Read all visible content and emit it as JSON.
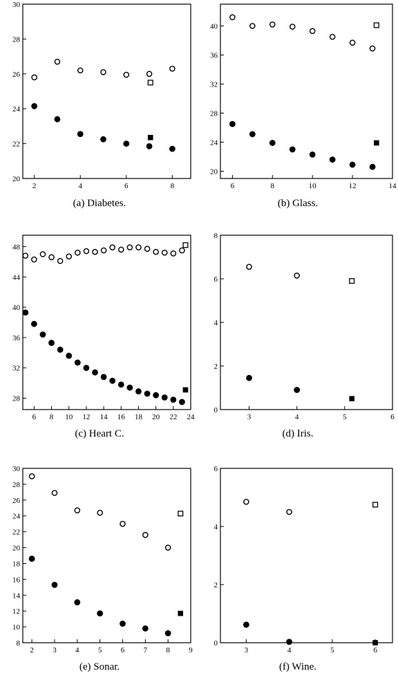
{
  "chart_data": [
    {
      "type": "scatter",
      "caption": "(a) Diabetes.",
      "xlim": [
        1.5,
        8.8
      ],
      "ylim": [
        20,
        30
      ],
      "xticks": [
        2,
        4,
        6,
        8
      ],
      "yticks": [
        20,
        22,
        24,
        26,
        28,
        30
      ],
      "series": [
        {
          "marker": "open-circle",
          "points": [
            [
              2,
              25.8
            ],
            [
              3,
              26.7
            ],
            [
              4,
              26.2
            ],
            [
              5,
              26.1
            ],
            [
              6,
              25.95
            ],
            [
              7,
              26.0
            ],
            [
              8,
              26.3
            ]
          ]
        },
        {
          "marker": "filled-circle",
          "points": [
            [
              2,
              24.15
            ],
            [
              3,
              23.4
            ],
            [
              4,
              22.55
            ],
            [
              5,
              22.25
            ],
            [
              6,
              22.0
            ],
            [
              7,
              21.85
            ],
            [
              8,
              21.7
            ]
          ]
        },
        {
          "marker": "open-square",
          "points": [
            [
              7.05,
              25.5
            ]
          ]
        },
        {
          "marker": "filled-square",
          "points": [
            [
              7.05,
              22.35
            ]
          ]
        }
      ]
    },
    {
      "type": "scatter",
      "caption": "(b) Glass.",
      "xlim": [
        5.4,
        14
      ],
      "ylim": [
        19,
        43
      ],
      "xticks": [
        6,
        8,
        10,
        12,
        14
      ],
      "yticks": [
        20,
        24,
        28,
        32,
        36,
        40
      ],
      "series": [
        {
          "marker": "open-circle",
          "points": [
            [
              6,
              41.2
            ],
            [
              7,
              40.0
            ],
            [
              8,
              40.2
            ],
            [
              9,
              39.9
            ],
            [
              10,
              39.3
            ],
            [
              11,
              38.5
            ],
            [
              12,
              37.7
            ],
            [
              13,
              36.9
            ]
          ]
        },
        {
          "marker": "filled-circle",
          "points": [
            [
              6,
              26.5
            ],
            [
              7,
              25.1
            ],
            [
              8,
              23.9
            ],
            [
              9,
              23.0
            ],
            [
              10,
              22.3
            ],
            [
              11,
              21.6
            ],
            [
              12,
              20.9
            ],
            [
              13,
              20.6
            ]
          ]
        },
        {
          "marker": "open-square",
          "points": [
            [
              13.2,
              40.1
            ]
          ]
        },
        {
          "marker": "filled-square",
          "points": [
            [
              13.2,
              23.9
            ]
          ]
        }
      ]
    },
    {
      "type": "scatter",
      "caption": "(c) Heart C.",
      "xlim": [
        4.7,
        24
      ],
      "ylim": [
        26.5,
        49.5
      ],
      "xticks": [
        6,
        8,
        10,
        12,
        14,
        16,
        18,
        20,
        22,
        24
      ],
      "yticks": [
        28,
        32,
        36,
        40,
        44,
        48
      ],
      "series": [
        {
          "marker": "open-circle",
          "points": [
            [
              5,
              46.8
            ],
            [
              6,
              46.3
            ],
            [
              7,
              47.0
            ],
            [
              8,
              46.6
            ],
            [
              9,
              46.1
            ],
            [
              10,
              46.7
            ],
            [
              11,
              47.2
            ],
            [
              12,
              47.4
            ],
            [
              13,
              47.3
            ],
            [
              14,
              47.5
            ],
            [
              15,
              47.9
            ],
            [
              16,
              47.6
            ],
            [
              17,
              47.9
            ],
            [
              18,
              47.9
            ],
            [
              19,
              47.7
            ],
            [
              20,
              47.3
            ],
            [
              21,
              47.2
            ],
            [
              22,
              47.1
            ],
            [
              23,
              47.5
            ]
          ]
        },
        {
          "marker": "filled-circle",
          "points": [
            [
              5,
              39.3
            ],
            [
              6,
              37.8
            ],
            [
              7,
              36.4
            ],
            [
              8,
              35.3
            ],
            [
              9,
              34.4
            ],
            [
              10,
              33.6
            ],
            [
              11,
              32.7
            ],
            [
              12,
              32.0
            ],
            [
              13,
              31.4
            ],
            [
              14,
              30.8
            ],
            [
              15,
              30.3
            ],
            [
              16,
              29.8
            ],
            [
              17,
              29.4
            ],
            [
              18,
              28.9
            ],
            [
              19,
              28.6
            ],
            [
              20,
              28.4
            ],
            [
              21,
              28.1
            ],
            [
              22,
              27.8
            ],
            [
              23,
              27.5
            ]
          ]
        },
        {
          "marker": "open-square",
          "points": [
            [
              23.4,
              48.2
            ]
          ]
        },
        {
          "marker": "filled-square",
          "points": [
            [
              23.4,
              29.1
            ]
          ]
        }
      ]
    },
    {
      "type": "scatter",
      "caption": "(d) Iris.",
      "xlim": [
        2.4,
        6
      ],
      "ylim": [
        0,
        8
      ],
      "xticks": [
        3,
        4,
        5,
        6
      ],
      "yticks": [
        0,
        2,
        4,
        6,
        8
      ],
      "series": [
        {
          "marker": "open-circle",
          "points": [
            [
              3,
              6.55
            ],
            [
              4,
              6.15
            ]
          ]
        },
        {
          "marker": "filled-circle",
          "points": [
            [
              3,
              1.45
            ],
            [
              4,
              0.9
            ]
          ]
        },
        {
          "marker": "open-square",
          "points": [
            [
              5.15,
              5.9
            ]
          ]
        },
        {
          "marker": "filled-square",
          "points": [
            [
              5.15,
              0.5
            ]
          ]
        }
      ]
    },
    {
      "type": "scatter",
      "caption": "(e) Sonar.",
      "xlim": [
        1.6,
        9
      ],
      "ylim": [
        8,
        30
      ],
      "xticks": [
        2,
        3,
        4,
        5,
        6,
        7,
        8,
        9
      ],
      "yticks": [
        8,
        10,
        12,
        14,
        16,
        18,
        20,
        22,
        24,
        26,
        28,
        30
      ],
      "series": [
        {
          "marker": "open-circle",
          "points": [
            [
              2,
              29.0
            ],
            [
              3,
              26.9
            ],
            [
              4,
              24.7
            ],
            [
              5,
              24.4
            ],
            [
              6,
              23.0
            ],
            [
              7,
              21.6
            ],
            [
              8,
              20.0
            ]
          ]
        },
        {
          "marker": "filled-circle",
          "points": [
            [
              2,
              18.6
            ],
            [
              3,
              15.3
            ],
            [
              4,
              13.1
            ],
            [
              5,
              11.7
            ],
            [
              6,
              10.4
            ],
            [
              7,
              9.8
            ],
            [
              8,
              9.2
            ]
          ]
        },
        {
          "marker": "open-square",
          "points": [
            [
              8.55,
              24.3
            ]
          ]
        },
        {
          "marker": "filled-square",
          "points": [
            [
              8.55,
              11.7
            ]
          ]
        }
      ]
    },
    {
      "type": "scatter",
      "caption": "(f) Wine.",
      "xlim": [
        2.4,
        6.4
      ],
      "ylim": [
        0,
        6
      ],
      "xticks": [
        3,
        4,
        5,
        6
      ],
      "yticks": [
        0,
        2,
        4,
        6
      ],
      "series": [
        {
          "marker": "open-circle",
          "points": [
            [
              3,
              4.85
            ],
            [
              4,
              4.5
            ]
          ]
        },
        {
          "marker": "filled-circle",
          "points": [
            [
              3,
              0.62
            ],
            [
              4,
              0.03
            ]
          ]
        },
        {
          "marker": "open-square",
          "points": [
            [
              6,
              4.75
            ]
          ]
        },
        {
          "marker": "filled-square",
          "points": [
            [
              6,
              0.0
            ]
          ]
        }
      ]
    }
  ]
}
